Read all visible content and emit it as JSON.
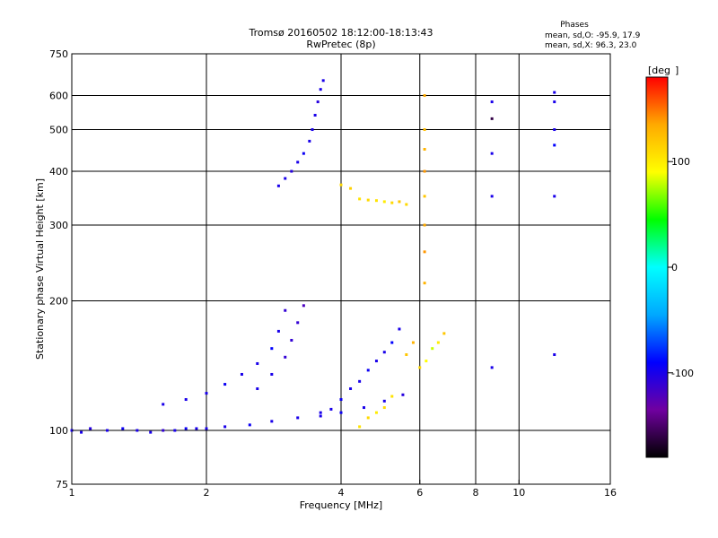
{
  "chart_data": {
    "type": "scatter",
    "title": "Tromsø 20160502 18:12:00-18:13:43",
    "subtitle": "RwPretec (8p)",
    "xlabel": "Frequency [MHz]",
    "ylabel": "Stationary phase Virtual Height [km]",
    "x_scale": "log",
    "y_scale": "log",
    "xlim": [
      1,
      16
    ],
    "ylim": [
      75,
      750
    ],
    "x_ticks": [
      1,
      2,
      4,
      6,
      8,
      10,
      16
    ],
    "x_tick_labels": [
      "1",
      "2",
      "4",
      "6",
      "8",
      "10",
      "16"
    ],
    "y_ticks": [
      75,
      100,
      200,
      300,
      400,
      500,
      600,
      750
    ],
    "y_tick_labels": [
      "75",
      "100",
      "200",
      "300",
      "400",
      "500",
      "600",
      "750"
    ],
    "grid": true,
    "stats": {
      "header": "Phases",
      "line_o": "mean, sd,O: -95.9, 17.9",
      "line_x": "mean, sd,X:  96.3, 23.0"
    },
    "colorbar": {
      "label": "[deg",
      "range": [
        -180,
        180
      ],
      "ticks": [
        100,
        0,
        -100
      ],
      "tick_labels": [
        "100",
        "0",
        "-100"
      ],
      "colors": [
        "#000000",
        "#7000a0",
        "#0000ff",
        "#00a8ff",
        "#00ffff",
        "#00ff00",
        "#ffff00",
        "#ffaa00",
        "#ff0000"
      ]
    },
    "series": [
      {
        "x": [
          1.0,
          1.05,
          1.1,
          1.2,
          1.3,
          1.4,
          1.5,
          1.6,
          1.7,
          1.8,
          1.9,
          2.0,
          2.2,
          2.5,
          2.8,
          3.2,
          3.6,
          4.0,
          4.5,
          5.0,
          5.5
        ],
        "y": [
          100,
          99,
          101,
          100,
          101,
          100,
          99,
          100,
          100,
          101,
          101,
          101,
          102,
          103,
          105,
          107,
          108,
          110,
          113,
          117,
          121
        ],
        "phase": [
          -100,
          -100,
          -105,
          -100,
          -95,
          -100,
          -100,
          -110,
          -100,
          -95,
          -100,
          -100,
          -100,
          -95,
          -100,
          -100,
          -100,
          -95,
          -100,
          -100,
          -105
        ]
      },
      {
        "x": [
          1.6,
          1.8,
          2.0,
          2.2,
          2.4,
          2.6,
          2.8,
          2.9,
          3.0
        ],
        "y": [
          115,
          118,
          122,
          128,
          135,
          143,
          155,
          170,
          190
        ],
        "phase": [
          -100,
          -100,
          -100,
          -95,
          -100,
          -100,
          -90,
          -100,
          -110
        ]
      },
      {
        "x": [
          2.6,
          2.8,
          3.0,
          3.1,
          3.2,
          3.3
        ],
        "y": [
          125,
          135,
          148,
          162,
          178,
          195
        ],
        "phase": [
          -100,
          -100,
          -110,
          -110,
          -110,
          -120
        ]
      },
      {
        "x": [
          3.6,
          3.8,
          4.0,
          4.2,
          4.4,
          4.6,
          4.8,
          5.0,
          5.2,
          5.4
        ],
        "y": [
          110,
          112,
          118,
          125,
          130,
          138,
          145,
          152,
          160,
          172
        ],
        "phase": [
          -100,
          -100,
          -95,
          -100,
          -100,
          -95,
          -100,
          -100,
          -90,
          -100
        ]
      },
      {
        "x": [
          2.9,
          3.0,
          3.1,
          3.2,
          3.3,
          3.4,
          3.45,
          3.5,
          3.55,
          3.6,
          3.65
        ],
        "y": [
          370,
          385,
          400,
          420,
          440,
          470,
          500,
          540,
          580,
          620,
          650
        ],
        "phase": [
          -100,
          -100,
          -105,
          -100,
          -95,
          -100,
          -100,
          -100,
          -105,
          -100,
          -100
        ]
      },
      {
        "x": [
          4.0,
          4.2,
          4.4,
          4.6,
          4.8,
          5.0,
          5.2,
          5.4,
          5.6
        ],
        "y": [
          372,
          365,
          345,
          343,
          342,
          340,
          338,
          340,
          335
        ],
        "phase": [
          110,
          115,
          105,
          110,
          105,
          100,
          110,
          120,
          110
        ]
      },
      {
        "x": [
          4.4,
          4.6,
          4.8,
          5.0,
          5.2
        ],
        "y": [
          102,
          107,
          110,
          113,
          120
        ],
        "phase": [
          105,
          110,
          100,
          110,
          105
        ]
      },
      {
        "x": [
          5.6,
          5.8,
          6.0,
          6.2,
          6.4,
          6.6,
          6.8
        ],
        "y": [
          150,
          160,
          140,
          145,
          155,
          160,
          168
        ],
        "phase": [
          120,
          130,
          110,
          90,
          80,
          100,
          120
        ]
      },
      {
        "x": [
          6.15,
          6.15,
          6.15,
          6.15,
          6.15,
          6.15,
          6.15,
          6.15
        ],
        "y": [
          220,
          260,
          300,
          350,
          400,
          450,
          500,
          600
        ],
        "phase": [
          130,
          140,
          135,
          120,
          140,
          130,
          125,
          135
        ]
      },
      {
        "x": [
          8.7,
          8.7,
          8.7,
          8.7,
          8.7,
          12.0,
          12.0,
          12.0,
          12.0,
          12.0,
          12.0
        ],
        "y": [
          350,
          440,
          530,
          580,
          140,
          150,
          350,
          460,
          500,
          580,
          610
        ],
        "phase": [
          -100,
          -100,
          -160,
          -100,
          -100,
          -100,
          -100,
          -90,
          -100,
          -100,
          -100
        ]
      }
    ]
  }
}
